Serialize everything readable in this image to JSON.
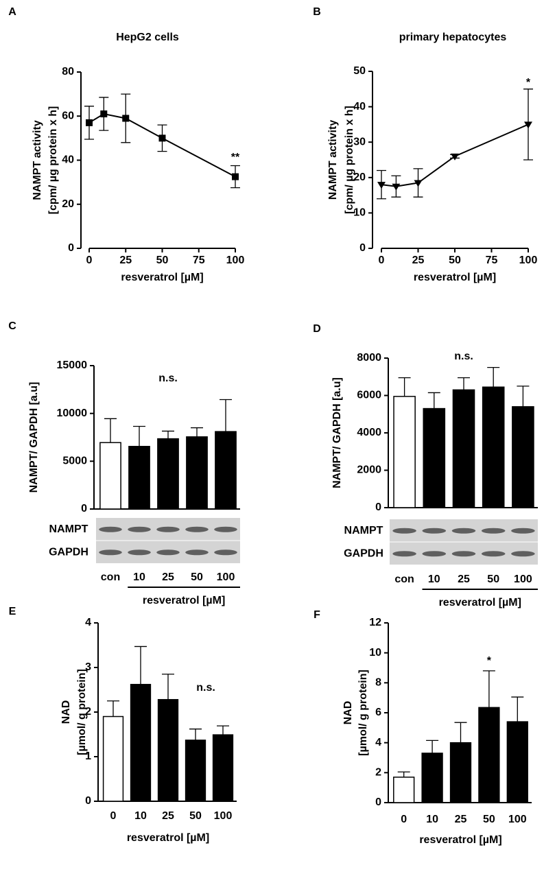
{
  "chart_data": [
    {
      "type": "line",
      "panel": "A",
      "title": "HepG2 cells",
      "x_label": "resveratrol [µM]",
      "y_label": [
        "NAMPT activity",
        "[cpm/ µg protein x h]"
      ],
      "x": [
        0,
        10,
        25,
        50,
        100
      ],
      "values": [
        57,
        61,
        59,
        50,
        32.5
      ],
      "errors": [
        7.5,
        7.5,
        11,
        6,
        5
      ],
      "xlim": [
        0,
        100
      ],
      "xticks": [
        0,
        25,
        50,
        75,
        100
      ],
      "ylim": [
        0,
        80
      ],
      "yticks": [
        0,
        20,
        40,
        60,
        80
      ],
      "annotation": "**",
      "marker": "square",
      "color": "#000000"
    },
    {
      "type": "line",
      "panel": "B",
      "title": "primary hepatocytes",
      "x_label": "resveratrol [µM]",
      "y_label": [
        "NAMPT activity",
        "[cpm/ µg protein x h]"
      ],
      "x": [
        0,
        10,
        25,
        50,
        100
      ],
      "values": [
        18,
        17.5,
        18.5,
        26,
        35
      ],
      "errors": [
        4,
        3,
        4,
        0.5,
        10
      ],
      "xlim": [
        0,
        100
      ],
      "xticks": [
        0,
        25,
        50,
        75,
        100
      ],
      "ylim": [
        0,
        50
      ],
      "yticks": [
        0,
        10,
        20,
        30,
        40,
        50
      ],
      "annotation": "*",
      "marker": "triangle-down",
      "color": "#000000"
    },
    {
      "type": "bar",
      "panel": "C",
      "x_label": "resveratrol [µM]",
      "y_label": [
        "NAMPT/ GAPDH [a.u]"
      ],
      "categories": [
        "con",
        "10",
        "25",
        "50",
        "100"
      ],
      "values": [
        6950,
        6550,
        7350,
        7550,
        8100
      ],
      "errors": [
        2500,
        2100,
        800,
        950,
        3350
      ],
      "ylim": [
        0,
        15000
      ],
      "yticks": [
        0,
        5000,
        10000,
        15000
      ],
      "annotation": "n.s.",
      "blot_labels": [
        "NAMPT",
        "GAPDH"
      ],
      "colors": [
        "#ffffff",
        "#000000",
        "#000000",
        "#000000",
        "#000000"
      ]
    },
    {
      "type": "bar",
      "panel": "D",
      "x_label": "resveratrol [µM]",
      "y_label": [
        "NAMPT/ GAPDH [a.u]"
      ],
      "categories": [
        "con",
        "10",
        "25",
        "50",
        "100"
      ],
      "values": [
        5950,
        5300,
        6300,
        6450,
        5400
      ],
      "errors": [
        1000,
        850,
        650,
        1050,
        1100
      ],
      "ylim": [
        0,
        8000
      ],
      "yticks": [
        0,
        2000,
        4000,
        6000,
        8000
      ],
      "annotation": "n.s.",
      "blot_labels": [
        "NAMPT",
        "GAPDH"
      ],
      "colors": [
        "#ffffff",
        "#000000",
        "#000000",
        "#000000",
        "#000000"
      ]
    },
    {
      "type": "bar",
      "panel": "E",
      "x_label": "resveratrol [µM]",
      "y_label": [
        "NAD",
        "[µmol/ g protein]"
      ],
      "categories": [
        "0",
        "10",
        "25",
        "50",
        "100"
      ],
      "values": [
        1.9,
        2.62,
        2.28,
        1.37,
        1.49
      ],
      "errors": [
        0.35,
        0.85,
        0.57,
        0.25,
        0.2
      ],
      "ylim": [
        0,
        4
      ],
      "yticks": [
        0,
        1,
        2,
        3,
        4
      ],
      "annotation": "n.s.",
      "colors": [
        "#ffffff",
        "#000000",
        "#000000",
        "#000000",
        "#000000"
      ]
    },
    {
      "type": "bar",
      "panel": "F",
      "x_label": "resveratrol [µM]",
      "y_label": [
        "NAD",
        "[µmol/ g protein]"
      ],
      "categories": [
        "0",
        "10",
        "25",
        "50",
        "100"
      ],
      "values": [
        1.7,
        3.3,
        4.0,
        6.35,
        5.4
      ],
      "errors": [
        0.35,
        0.85,
        1.35,
        2.45,
        1.65
      ],
      "ylim": [
        0,
        12
      ],
      "yticks": [
        0,
        2,
        4,
        6,
        8,
        10,
        12
      ],
      "annotation": "*",
      "colors": [
        "#ffffff",
        "#000000",
        "#000000",
        "#000000",
        "#000000"
      ]
    }
  ]
}
